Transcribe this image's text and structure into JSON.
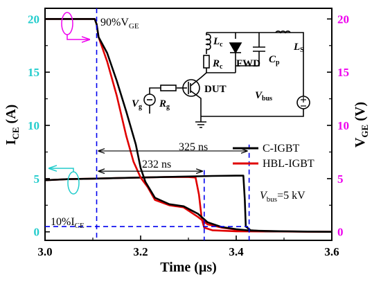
{
  "chart_data": {
    "type": "line",
    "xlabel": "Time (μs)",
    "ylabel_left": "I_CE (A)",
    "ylabel_right": "V_GE (V)",
    "xlim": [
      3.0,
      3.6
    ],
    "ylim_left": [
      -0.8,
      21.0
    ],
    "ylim_right": [
      -0.8,
      21.0
    ],
    "x_ticks": [
      "3.0",
      "3.2",
      "3.4",
      "3.6"
    ],
    "y_ticks_left": [
      "0",
      "5",
      "10",
      "15",
      "20"
    ],
    "y_ticks_right": [
      "0",
      "5",
      "10",
      "15",
      "20"
    ],
    "colors": {
      "c_igbt": "#000000",
      "hbl_igbt": "#e00000",
      "left_axis": "#22cccc",
      "right_axis": "#ee00ee",
      "marker_lines": "#0000ee"
    },
    "legend": [
      "C-IGBT",
      "HBL-IGBT"
    ],
    "legend_position": "right-center",
    "series": [
      {
        "name": "C-IGBT",
        "quantity": "V_GE",
        "points": [
          [
            3.0,
            20.0
          ],
          [
            3.104,
            20.0
          ],
          [
            3.108,
            19.5
          ],
          [
            3.112,
            18.3
          ],
          [
            3.13,
            16.8
          ],
          [
            3.15,
            14.2
          ],
          [
            3.17,
            11.3
          ],
          [
            3.19,
            8.2
          ],
          [
            3.2,
            6.0
          ],
          [
            3.21,
            4.7
          ],
          [
            3.23,
            3.2
          ],
          [
            3.26,
            2.6
          ],
          [
            3.29,
            2.4
          ],
          [
            3.32,
            1.7
          ],
          [
            3.34,
            0.9
          ],
          [
            3.37,
            0.45
          ],
          [
            3.4,
            0.25
          ],
          [
            3.43,
            0.12
          ],
          [
            3.5,
            0.05
          ],
          [
            3.6,
            0.0
          ]
        ]
      },
      {
        "name": "HBL-IGBT",
        "quantity": "V_GE",
        "points": [
          [
            3.0,
            20.0
          ],
          [
            3.104,
            20.0
          ],
          [
            3.108,
            19.5
          ],
          [
            3.112,
            18.3
          ],
          [
            3.13,
            16.0
          ],
          [
            3.15,
            12.8
          ],
          [
            3.17,
            9.0
          ],
          [
            3.185,
            6.6
          ],
          [
            3.2,
            5.1
          ],
          [
            3.215,
            4.2
          ],
          [
            3.23,
            3.0
          ],
          [
            3.26,
            2.5
          ],
          [
            3.29,
            2.3
          ],
          [
            3.32,
            1.4
          ],
          [
            3.34,
            0.7
          ],
          [
            3.37,
            0.4
          ],
          [
            3.4,
            0.2
          ],
          [
            3.43,
            0.1
          ],
          [
            3.5,
            0.04
          ],
          [
            3.6,
            0.0
          ]
        ]
      },
      {
        "name": "C-IGBT",
        "quantity": "I_CE",
        "points": [
          [
            3.0,
            4.85
          ],
          [
            3.05,
            4.95
          ],
          [
            3.1,
            5.0
          ],
          [
            3.15,
            5.05
          ],
          [
            3.2,
            5.1
          ],
          [
            3.25,
            5.15
          ],
          [
            3.3,
            5.2
          ],
          [
            3.35,
            5.25
          ],
          [
            3.4,
            5.28
          ],
          [
            3.415,
            5.28
          ],
          [
            3.418,
            3.0
          ],
          [
            3.42,
            0.5
          ],
          [
            3.43,
            0.15
          ],
          [
            3.46,
            0.05
          ],
          [
            3.6,
            0.0
          ]
        ]
      },
      {
        "name": "HBL-IGBT",
        "quantity": "I_CE",
        "points": [
          [
            3.0,
            4.85
          ],
          [
            3.05,
            4.95
          ],
          [
            3.1,
            5.0
          ],
          [
            3.15,
            5.05
          ],
          [
            3.2,
            5.1
          ],
          [
            3.25,
            5.15
          ],
          [
            3.3,
            5.15
          ],
          [
            3.315,
            5.1
          ],
          [
            3.322,
            3.5
          ],
          [
            3.328,
            1.2
          ],
          [
            3.333,
            0.4
          ],
          [
            3.35,
            0.15
          ],
          [
            3.4,
            0.05
          ],
          [
            3.6,
            0.0
          ]
        ]
      }
    ],
    "annotations": {
      "v90": "90%V_GE",
      "i10": "10%I_CE",
      "t_c": "325 ns",
      "t_hbl": "232 ns",
      "vbus": "V_bus=5 kV"
    },
    "circuit_labels": {
      "lc": "L_c",
      "rc": "R_c",
      "fwd": "FWD",
      "cp": "C_p",
      "ls": "L_S",
      "dut": "DUT",
      "vg": "V_g",
      "rg": "R_g",
      "vbus": "V_bus"
    }
  }
}
